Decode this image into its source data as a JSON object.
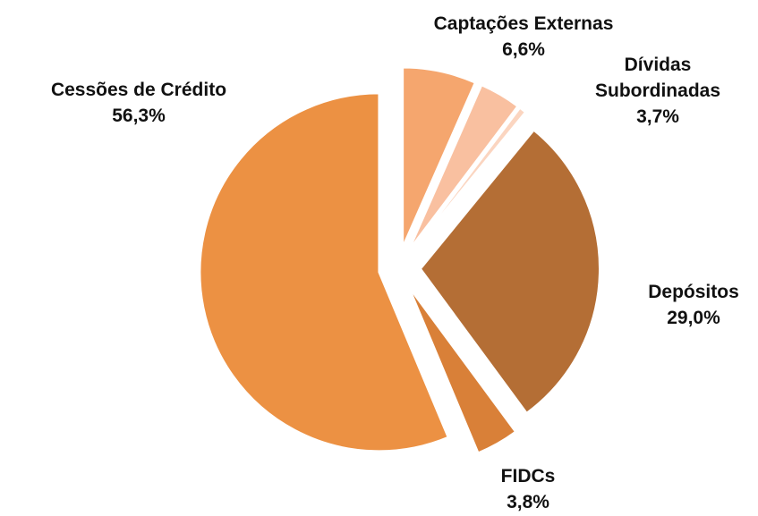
{
  "chart_data": {
    "type": "pie",
    "categories": [
      "Captações Externas",
      "Dívidas Subordinadas",
      null,
      "Depósitos",
      "FIDCs",
      "Cessões de Crédito"
    ],
    "values": [
      6.6,
      3.7,
      0.6,
      29.0,
      3.8,
      56.3
    ],
    "value_labels": [
      "6,6%",
      "3,7%",
      null,
      "29,0%",
      "3,8%",
      "56,3%"
    ],
    "colors": [
      "#f5a66e",
      "#f9c0a0",
      "#fbd5c0",
      "#b46e35",
      "#d98038",
      "#ec9143"
    ]
  }
}
